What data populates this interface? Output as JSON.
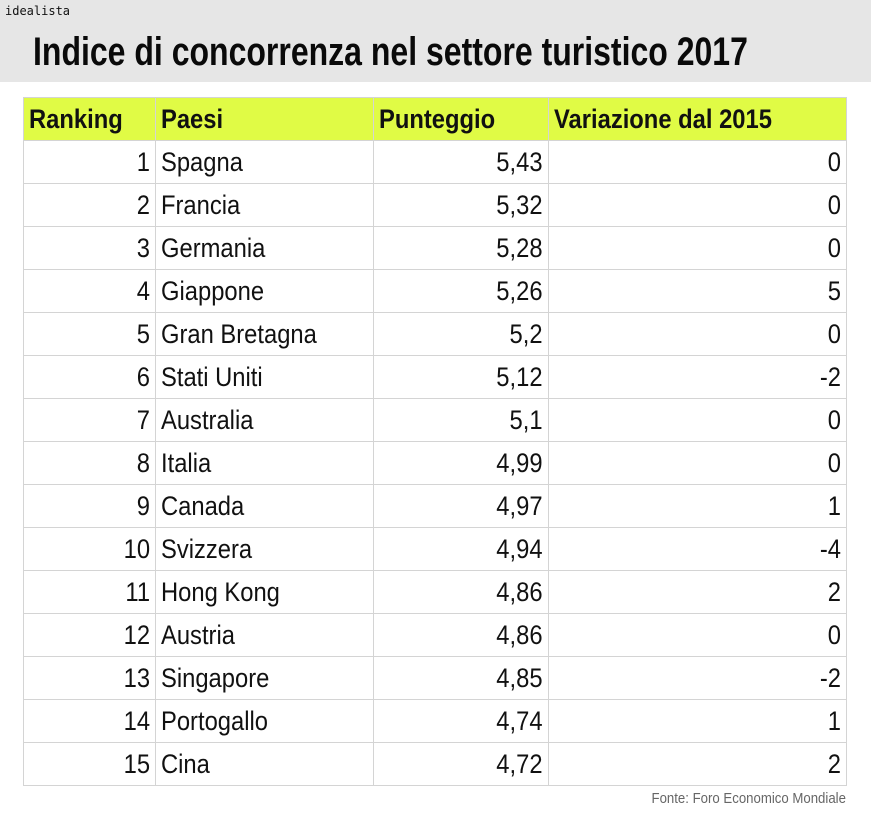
{
  "brand": "idealista",
  "title": "Indice di concorrenza nel settore turistico 2017",
  "source": "Fonte: Foro Economico Mondiale",
  "colors": {
    "header_row": "#e0fb45",
    "title_band": "#e6e6e6"
  },
  "chart_data": {
    "type": "table",
    "title": "Indice di concorrenza nel settore turistico 2017",
    "columns": [
      "Ranking",
      "Paesi",
      "Punteggio",
      "Variazione dal 2015"
    ],
    "rows": [
      [
        "1",
        "Spagna",
        "5,43",
        "0"
      ],
      [
        "2",
        "Francia",
        "5,32",
        "0"
      ],
      [
        "3",
        "Germania",
        "5,28",
        "0"
      ],
      [
        "4",
        "Giappone",
        "5,26",
        "5"
      ],
      [
        "5",
        "Gran Bretagna",
        "5,2",
        "0"
      ],
      [
        "6",
        "Stati Uniti",
        "5,12",
        "-2"
      ],
      [
        "7",
        "Australia",
        "5,1",
        "0"
      ],
      [
        "8",
        "Italia",
        "4,99",
        "0"
      ],
      [
        "9",
        "Canada",
        "4,97",
        "1"
      ],
      [
        "10",
        "Svizzera",
        "4,94",
        "-4"
      ],
      [
        "11",
        "Hong Kong",
        "4,86",
        "2"
      ],
      [
        "12",
        "Austria",
        "4,86",
        "0"
      ],
      [
        "13",
        "Singapore",
        "4,85",
        "-2"
      ],
      [
        "14",
        "Portogallo",
        "4,74",
        "1"
      ],
      [
        "15",
        "Cina",
        "4,72",
        "2"
      ]
    ]
  }
}
